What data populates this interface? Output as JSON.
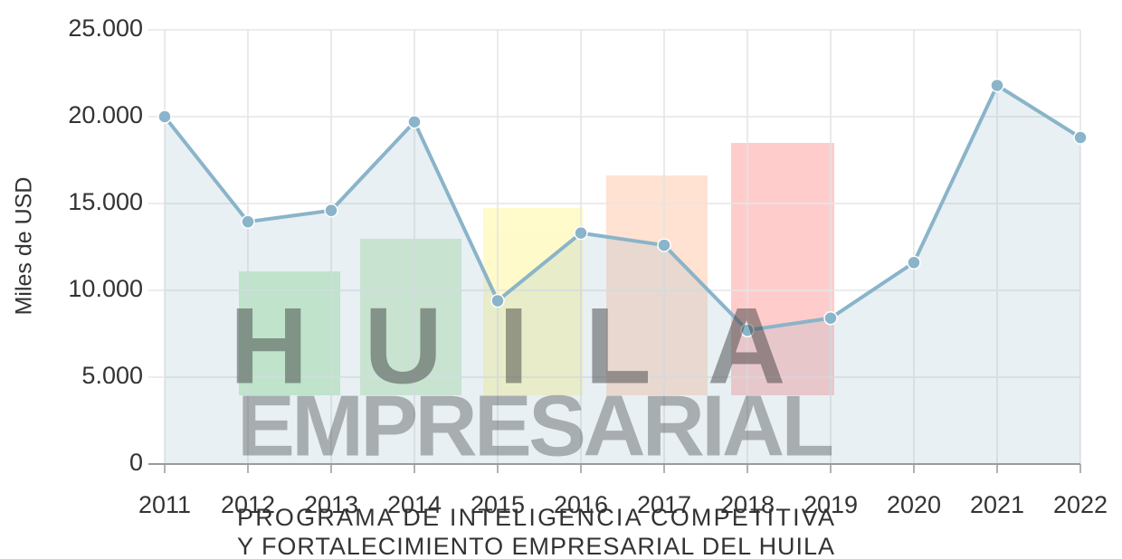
{
  "chart_data": {
    "type": "line",
    "y_label": "Miles de USD",
    "categories": [
      "2011",
      "2012",
      "2013",
      "2014",
      "2015",
      "2016",
      "2017",
      "2018",
      "2019",
      "2020",
      "2021",
      "2022"
    ],
    "series": [
      {
        "color": "#8ab4c9",
        "values": [
          20000,
          13950,
          14600,
          19700,
          9400,
          13300,
          12600,
          7700,
          8400,
          11600,
          21800,
          18800
        ]
      }
    ],
    "area": true,
    "ylim": [
      0,
      25000
    ],
    "yticks": [
      0,
      {
        "value": 5000,
        "label": "5.000"
      },
      {
        "value": 10000,
        "label": "10.000"
      },
      {
        "value": 15000,
        "label": "15.000"
      },
      {
        "value": 20000,
        "label": "20.000"
      },
      {
        "value": 25000,
        "label": "25.000"
      }
    ],
    "grid": true
  },
  "watermark": {
    "title": "HUILA",
    "subtitle": "EMPRESARIAL",
    "lines": [
      "PROGRAMA DE INTELIGENCIA COMPETITIVA",
      "Y FORTALECIMIENTO EMPRESARIAL DEL HUILA"
    ]
  }
}
